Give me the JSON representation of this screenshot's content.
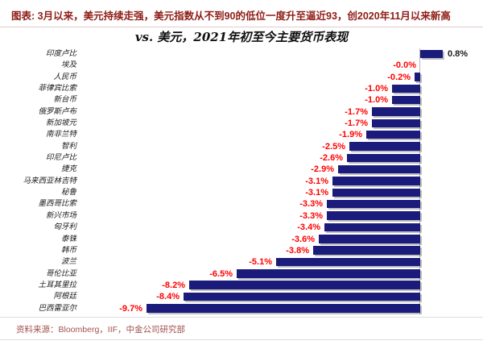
{
  "header": {
    "title": "图表: 3月以来，美元持续走强，美元指数从不到90的低位一度升至逼近93，创2020年11月以来新高"
  },
  "chart_data": {
    "type": "bar",
    "orientation": "horizontal",
    "title": "vs. 美元，2021年初至今主要货币表现",
    "categories": [
      "印度卢比",
      "埃及",
      "人民币",
      "菲律宾比索",
      "新台币",
      "俄罗斯卢布",
      "新加坡元",
      "南非兰特",
      "智利",
      "印尼卢比",
      "捷克",
      "马来西亚林吉特",
      "秘鲁",
      "墨西哥比索",
      "新兴市场",
      "匈牙利",
      "泰铢",
      "韩币",
      "波兰",
      "哥伦比亚",
      "土耳其里拉",
      "阿根廷",
      "巴西雷亚尔"
    ],
    "values": [
      0.8,
      -0.0,
      -0.2,
      -1.0,
      -1.0,
      -1.7,
      -1.7,
      -1.9,
      -2.5,
      -2.6,
      -2.9,
      -3.1,
      -3.1,
      -3.3,
      -3.3,
      -3.4,
      -3.6,
      -3.8,
      -5.1,
      -6.5,
      -8.2,
      -8.4,
      -9.7
    ],
    "labels": [
      "0.8%",
      "-0.0%",
      "-0.2%",
      "-1.0%",
      "-1.0%",
      "-1.7%",
      "-1.7%",
      "-1.9%",
      "-2.5%",
      "-2.6%",
      "-2.9%",
      "-3.1%",
      "-3.1%",
      "-3.3%",
      "-3.3%",
      "-3.4%",
      "-3.6%",
      "-3.8%",
      "-5.1%",
      "-6.5%",
      "-8.2%",
      "-8.4%",
      "-9.7%"
    ],
    "xlabel": "",
    "ylabel": "",
    "xlim": [
      -12,
      2.2
    ],
    "grid": false,
    "legend": false,
    "zero_axis_line": true,
    "bar_color": "#1b1b7c",
    "negative_label_color": "#ff0000",
    "positive_label_color": "#1a1a1a"
  },
  "footer": {
    "source": "资料来源：Bloomberg，IIF，中金公司研究部"
  }
}
